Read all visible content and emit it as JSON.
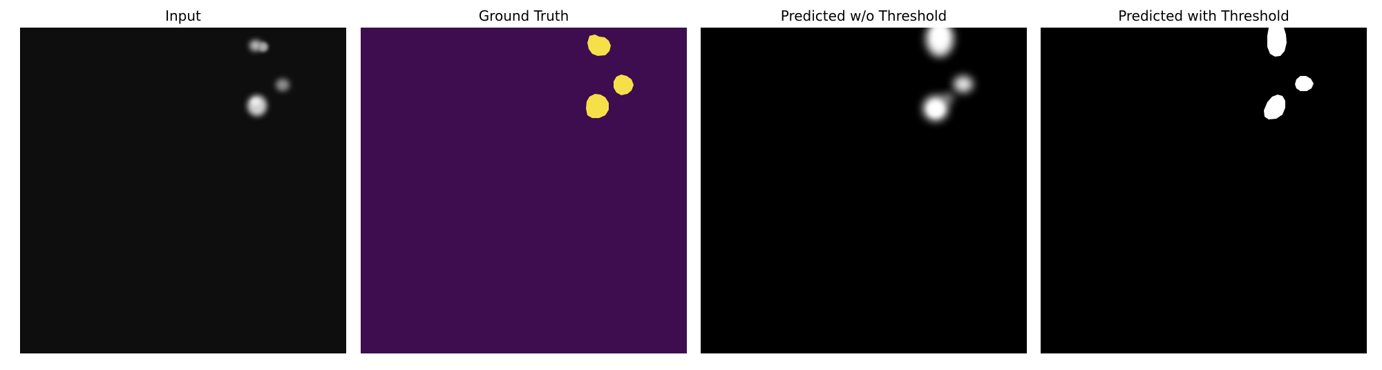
{
  "figure": {
    "panels": [
      {
        "title": "Input",
        "colormap": "gray",
        "background": "#0e0e0e"
      },
      {
        "title": "Ground Truth",
        "colormap": "viridis",
        "background": "#3d0d4f",
        "foreground": "#f5e04a"
      },
      {
        "title": "Predicted w/o Threshold",
        "colormap": "gray",
        "background": "#000000"
      },
      {
        "title": "Predicted with Threshold",
        "colormap": "gray",
        "background": "#000000",
        "foreground": "#ffffff"
      }
    ]
  }
}
